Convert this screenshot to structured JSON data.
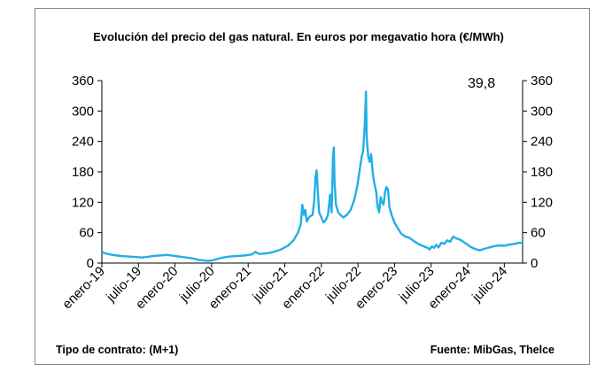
{
  "title": "Evolución del precio del gas natural. En euros por megavatio hora (€/MWh)",
  "footer_left": "Tipo de contrato: (M+1)",
  "footer_right": "Fuente: MibGas, Thelce",
  "last_value_label": "39,8",
  "colors": {
    "series": "#22aee6",
    "axis": "#000000",
    "frame": "#8a8a8a"
  },
  "chart_data": {
    "type": "line",
    "ylim": [
      0,
      360
    ],
    "yticks": [
      "0",
      "60",
      "120",
      "180",
      "240",
      "300",
      "360"
    ],
    "y_axis_right": true,
    "grid": false,
    "xlim": [
      2019.0,
      2024.75
    ],
    "xticks": [
      {
        "t": 2019.0,
        "label": "enero-19"
      },
      {
        "t": 2019.5,
        "label": "julio-19"
      },
      {
        "t": 2020.0,
        "label": "enero-20"
      },
      {
        "t": 2020.5,
        "label": "julio-20"
      },
      {
        "t": 2021.0,
        "label": "enero-21"
      },
      {
        "t": 2021.5,
        "label": "julio-21"
      },
      {
        "t": 2022.0,
        "label": "enero-22"
      },
      {
        "t": 2022.5,
        "label": "julio-22"
      },
      {
        "t": 2023.0,
        "label": "enero-23"
      },
      {
        "t": 2023.5,
        "label": "julio-23"
      },
      {
        "t": 2024.0,
        "label": "enero-24"
      },
      {
        "t": 2024.5,
        "label": "julio-24"
      }
    ],
    "series": [
      {
        "points": [
          [
            2019.0,
            22
          ],
          [
            2019.03,
            20
          ],
          [
            2019.08,
            18
          ],
          [
            2019.15,
            16
          ],
          [
            2019.25,
            14
          ],
          [
            2019.35,
            13
          ],
          [
            2019.45,
            12
          ],
          [
            2019.55,
            11
          ],
          [
            2019.62,
            12
          ],
          [
            2019.7,
            14
          ],
          [
            2019.8,
            15
          ],
          [
            2019.88,
            16
          ],
          [
            2019.95,
            15
          ],
          [
            2020.05,
            13
          ],
          [
            2020.15,
            11
          ],
          [
            2020.25,
            9
          ],
          [
            2020.33,
            6
          ],
          [
            2020.4,
            5
          ],
          [
            2020.45,
            4
          ],
          [
            2020.5,
            5
          ],
          [
            2020.58,
            8
          ],
          [
            2020.66,
            11
          ],
          [
            2020.75,
            13
          ],
          [
            2020.85,
            14
          ],
          [
            2020.95,
            15
          ],
          [
            2021.05,
            17
          ],
          [
            2021.1,
            22
          ],
          [
            2021.15,
            18
          ],
          [
            2021.25,
            19
          ],
          [
            2021.35,
            22
          ],
          [
            2021.45,
            27
          ],
          [
            2021.55,
            35
          ],
          [
            2021.62,
            45
          ],
          [
            2021.68,
            60
          ],
          [
            2021.72,
            78
          ],
          [
            2021.74,
            115
          ],
          [
            2021.76,
            95
          ],
          [
            2021.78,
            105
          ],
          [
            2021.8,
            82
          ],
          [
            2021.84,
            92
          ],
          [
            2021.88,
            95
          ],
          [
            2021.9,
            120
          ],
          [
            2021.92,
            170
          ],
          [
            2021.935,
            183
          ],
          [
            2021.95,
            145
          ],
          [
            2021.97,
            100
          ],
          [
            2022.0,
            90
          ],
          [
            2022.03,
            80
          ],
          [
            2022.06,
            85
          ],
          [
            2022.09,
            95
          ],
          [
            2022.12,
            135
          ],
          [
            2022.14,
            100
          ],
          [
            2022.16,
            210
          ],
          [
            2022.17,
            228
          ],
          [
            2022.18,
            160
          ],
          [
            2022.2,
            115
          ],
          [
            2022.23,
            100
          ],
          [
            2022.26,
            95
          ],
          [
            2022.3,
            90
          ],
          [
            2022.35,
            95
          ],
          [
            2022.4,
            105
          ],
          [
            2022.45,
            125
          ],
          [
            2022.48,
            145
          ],
          [
            2022.5,
            160
          ],
          [
            2022.53,
            190
          ],
          [
            2022.55,
            210
          ],
          [
            2022.57,
            220
          ],
          [
            2022.59,
            265
          ],
          [
            2022.6,
            300
          ],
          [
            2022.61,
            338
          ],
          [
            2022.62,
            250
          ],
          [
            2022.64,
            210
          ],
          [
            2022.66,
            200
          ],
          [
            2022.68,
            215
          ],
          [
            2022.7,
            180
          ],
          [
            2022.72,
            160
          ],
          [
            2022.75,
            140
          ],
          [
            2022.77,
            110
          ],
          [
            2022.79,
            100
          ],
          [
            2022.81,
            130
          ],
          [
            2022.83,
            120
          ],
          [
            2022.85,
            115
          ],
          [
            2022.87,
            140
          ],
          [
            2022.89,
            150
          ],
          [
            2022.91,
            145
          ],
          [
            2022.93,
            110
          ],
          [
            2022.96,
            95
          ],
          [
            2023.0,
            80
          ],
          [
            2023.03,
            72
          ],
          [
            2023.06,
            65
          ],
          [
            2023.09,
            58
          ],
          [
            2023.12,
            55
          ],
          [
            2023.15,
            52
          ],
          [
            2023.2,
            50
          ],
          [
            2023.25,
            45
          ],
          [
            2023.3,
            40
          ],
          [
            2023.35,
            36
          ],
          [
            2023.4,
            33
          ],
          [
            2023.45,
            30
          ],
          [
            2023.48,
            27
          ],
          [
            2023.51,
            33
          ],
          [
            2023.54,
            30
          ],
          [
            2023.57,
            36
          ],
          [
            2023.6,
            31
          ],
          [
            2023.64,
            40
          ],
          [
            2023.68,
            38
          ],
          [
            2023.72,
            45
          ],
          [
            2023.76,
            42
          ],
          [
            2023.8,
            52
          ],
          [
            2023.84,
            49
          ],
          [
            2023.88,
            47
          ],
          [
            2023.92,
            44
          ],
          [
            2023.96,
            40
          ],
          [
            2024.0,
            36
          ],
          [
            2024.04,
            32
          ],
          [
            2024.08,
            29
          ],
          [
            2024.12,
            27
          ],
          [
            2024.16,
            25
          ],
          [
            2024.2,
            27
          ],
          [
            2024.25,
            29
          ],
          [
            2024.3,
            31
          ],
          [
            2024.35,
            33
          ],
          [
            2024.4,
            34
          ],
          [
            2024.45,
            35
          ],
          [
            2024.5,
            34
          ],
          [
            2024.55,
            36
          ],
          [
            2024.6,
            37
          ],
          [
            2024.65,
            38
          ],
          [
            2024.7,
            40
          ],
          [
            2024.75,
            39.8
          ]
        ]
      }
    ]
  }
}
